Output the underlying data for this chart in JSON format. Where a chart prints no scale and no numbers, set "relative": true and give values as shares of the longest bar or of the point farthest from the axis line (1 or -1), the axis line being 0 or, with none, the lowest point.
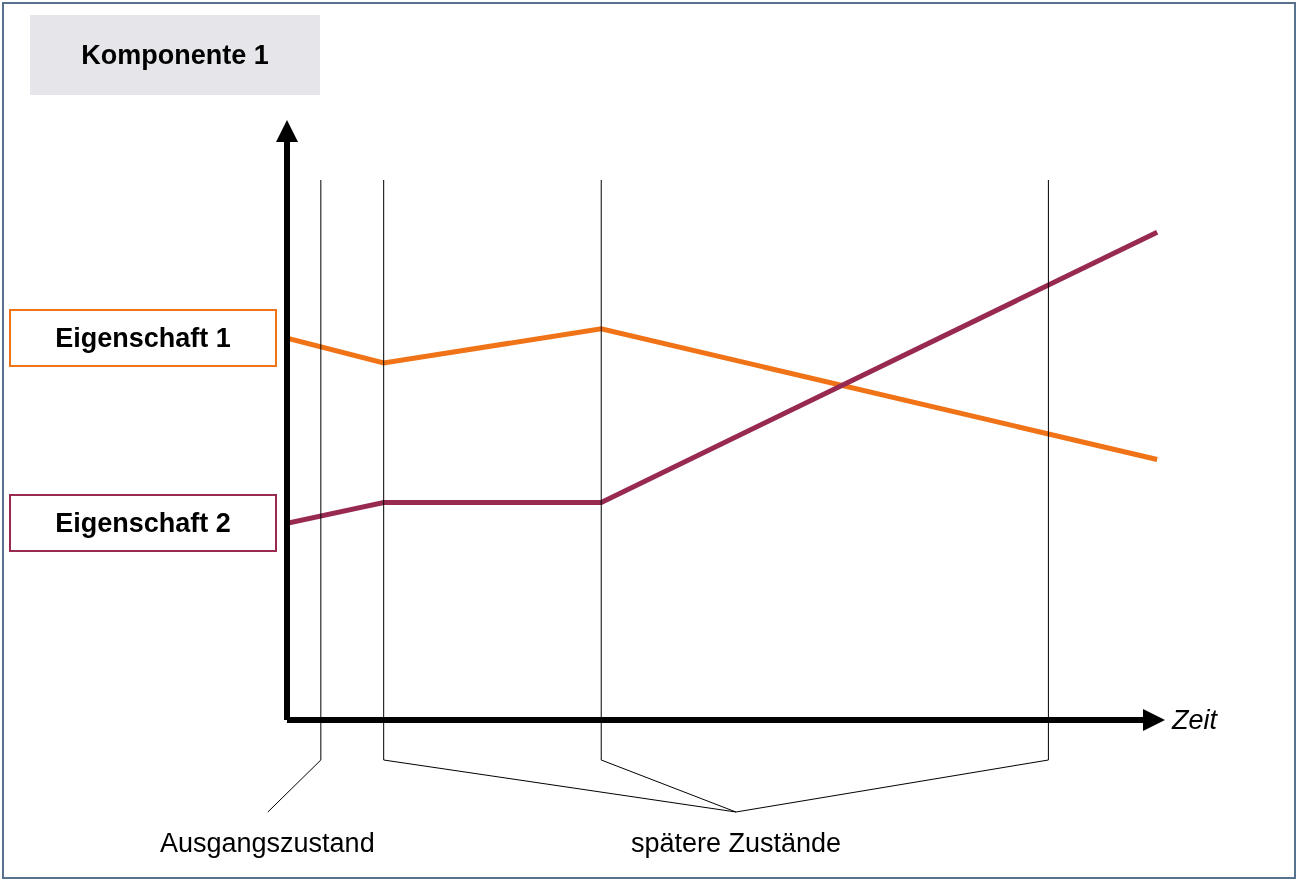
{
  "chart_data": {
    "type": "line",
    "relative": true,
    "title": "Komponente 1",
    "xlabel": "Zeit",
    "categories": [
      null,
      null,
      null,
      null,
      null,
      null,
      null,
      null,
      null,
      null,
      null,
      null,
      null,
      null,
      null,
      null,
      null,
      null,
      null,
      null,
      null,
      null,
      null,
      null,
      null,
      null,
      null,
      null,
      null,
      null,
      null,
      null,
      null,
      null,
      null,
      null,
      null
    ],
    "series": [
      {
        "name": "Eigenschaft 1",
        "color": "#f07318",
        "values": [
          0.783,
          null,
          null,
          null,
          0.732,
          null,
          null,
          null,
          null,
          null,
          null,
          null,
          null,
          0.802,
          null,
          null,
          null,
          null,
          null,
          null,
          null,
          null,
          null,
          null,
          null,
          null,
          null,
          null,
          null,
          null,
          null,
          null,
          null,
          null,
          null,
          null,
          0.534
        ]
      },
      {
        "name": "Eigenschaft 2",
        "color": "#982a52",
        "values": [
          0.403,
          null,
          null,
          null,
          0.446,
          null,
          null,
          null,
          null,
          null,
          null,
          null,
          null,
          0.446,
          null,
          null,
          null,
          null,
          null,
          null,
          null,
          null,
          null,
          null,
          null,
          null,
          null,
          null,
          null,
          null,
          null,
          null,
          null,
          null,
          null,
          null,
          1
        ]
      }
    ],
    "annotations": [
      "Ausgangszustand",
      "spätere Zustände"
    ],
    "legend": false,
    "marker": "none",
    "line_style": "solid"
  }
}
